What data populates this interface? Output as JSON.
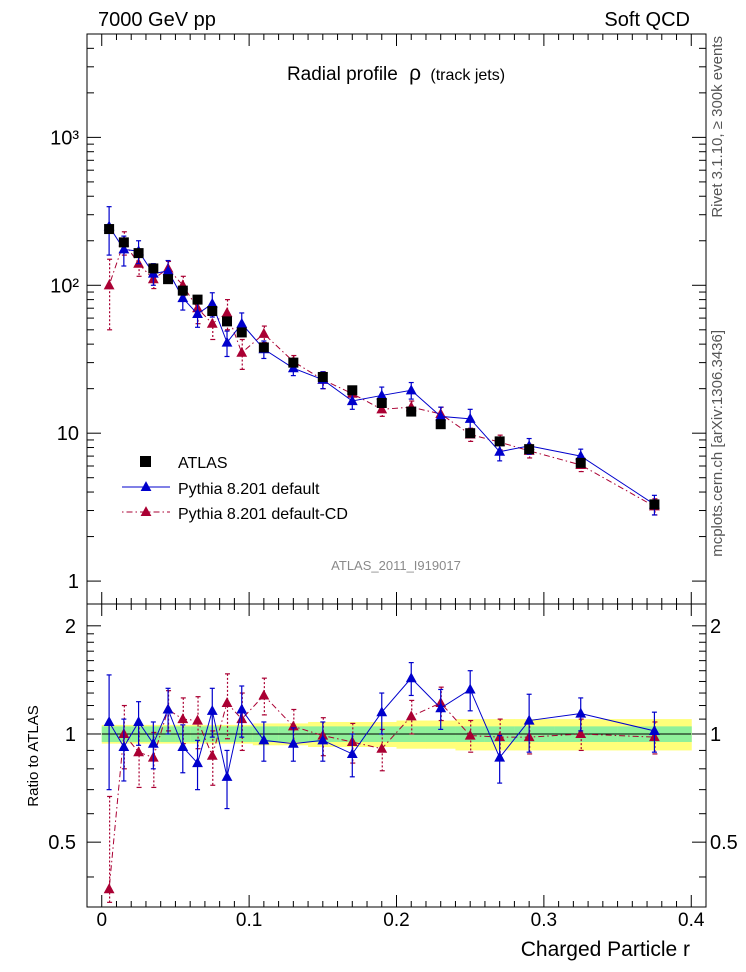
{
  "header": {
    "left": "7000 GeV pp",
    "right": "Soft QCD"
  },
  "side_labels": {
    "rivet": "Rivet 3.1.10, ≥ 300k events",
    "mcplots": "mcplots.cern.ch [arXiv:1306.3436]"
  },
  "chart_data": {
    "type": "scatter",
    "title_main": "Radial profile",
    "title_symbol": "ρ",
    "title_sub": "(track jets)",
    "watermark": "ATLAS_2011_I919017",
    "xlabel": "Charged Particle r",
    "ratio_ylabel": "Ratio to ATLAS",
    "xlim": [
      -0.01,
      0.41
    ],
    "ylim": [
      0.7,
      5000
    ],
    "yscale": "log",
    "ratio_ylim": [
      0.33,
      2.3
    ],
    "main_ytick_labels": [
      "1",
      "10",
      "10²",
      "10³"
    ],
    "ratio_ytick_labels": [
      "0.5",
      "1",
      "2"
    ],
    "x_tick_labels": [
      "0",
      "0.1",
      "0.2",
      "0.3",
      "0.4"
    ],
    "x": [
      0.005,
      0.015,
      0.025,
      0.035,
      0.045,
      0.055,
      0.065,
      0.075,
      0.085,
      0.095,
      0.11,
      0.13,
      0.15,
      0.17,
      0.19,
      0.21,
      0.23,
      0.25,
      0.27,
      0.29,
      0.325,
      0.375
    ],
    "legend": [
      "ATLAS",
      "Pythia 8.201 default",
      "Pythia 8.201 default-CD"
    ],
    "series": [
      {
        "name": "ATLAS",
        "color": "#000000",
        "marker": "square",
        "values": [
          240,
          195,
          165,
          130,
          110,
          92,
          80,
          67,
          57,
          48,
          38,
          30,
          24,
          19.5,
          16,
          14,
          11.5,
          10,
          8.8,
          7.8,
          6.3,
          3.3
        ]
      },
      {
        "name": "Pythia 8.201 default",
        "color": "#0000cc",
        "marker": "triangle",
        "values": [
          250,
          175,
          170,
          120,
          125,
          82,
          64,
          75,
          41,
          55,
          37,
          27.5,
          23,
          16.5,
          18,
          19.5,
          13,
          12.5,
          7.5,
          8.2,
          7,
          3.3
        ],
        "errors": [
          90,
          40,
          30,
          20,
          22,
          14,
          12,
          14,
          8,
          10,
          5,
          3,
          3,
          2,
          2.5,
          2.5,
          2,
          2,
          1,
          1,
          0.8,
          0.5
        ]
      },
      {
        "name": "Pythia 8.201 default-CD",
        "color": "#aa0033",
        "marker": "triangle",
        "values": [
          100,
          195,
          140,
          110,
          130,
          100,
          70,
          55,
          65,
          35,
          47,
          30.5,
          23,
          18.5,
          14.5,
          15,
          13.5,
          9.8,
          8.7,
          7.6,
          6.1,
          3.2
        ],
        "errors": [
          50,
          35,
          25,
          15,
          15,
          15,
          15,
          12,
          15,
          8,
          6,
          3,
          3,
          2,
          1.5,
          1.5,
          1.5,
          1,
          1,
          0.8,
          0.6,
          0.4
        ]
      }
    ],
    "ratio_series": [
      {
        "name": "Pythia 8.201 default",
        "values": [
          1.08,
          0.92,
          1.08,
          0.94,
          1.17,
          0.92,
          0.83,
          1.16,
          0.76,
          1.17,
          0.96,
          0.94,
          0.96,
          0.88,
          1.15,
          1.43,
          1.18,
          1.33,
          0.86,
          1.09,
          1.14,
          1.02
        ],
        "errors": [
          0.38,
          0.18,
          0.15,
          0.14,
          0.17,
          0.14,
          0.13,
          0.18,
          0.14,
          0.19,
          0.12,
          0.1,
          0.12,
          0.12,
          0.15,
          0.15,
          0.15,
          0.17,
          0.13,
          0.2,
          0.12,
          0.13
        ]
      },
      {
        "name": "Pythia 8.201 default-CD",
        "values": [
          0.37,
          1.0,
          0.89,
          0.86,
          1.17,
          1.1,
          1.09,
          0.87,
          1.22,
          1.1,
          1.28,
          1.05,
          0.99,
          0.95,
          0.91,
          1.12,
          1.22,
          0.99,
          0.98,
          0.98,
          1.0,
          0.98
        ],
        "errors": [
          0.3,
          0.2,
          0.18,
          0.15,
          0.15,
          0.16,
          0.18,
          0.15,
          0.25,
          0.2,
          0.15,
          0.12,
          0.12,
          0.12,
          0.12,
          0.12,
          0.13,
          0.1,
          0.12,
          0.1,
          0.1,
          0.1
        ]
      }
    ],
    "ratio_band_inner": [
      0.05,
      0.05,
      0.05,
      0.05,
      0.05,
      0.05,
      0.05,
      0.05,
      0.05,
      0.05,
      0.05,
      0.05,
      0.05,
      0.05,
      0.05,
      0.05,
      0.05,
      0.05,
      0.05,
      0.05,
      0.05,
      0.05
    ],
    "ratio_band_outer": [
      0.06,
      0.06,
      0.06,
      0.06,
      0.06,
      0.06,
      0.06,
      0.06,
      0.06,
      0.06,
      0.07,
      0.07,
      0.08,
      0.08,
      0.08,
      0.09,
      0.09,
      0.1,
      0.1,
      0.1,
      0.1,
      0.1
    ]
  }
}
